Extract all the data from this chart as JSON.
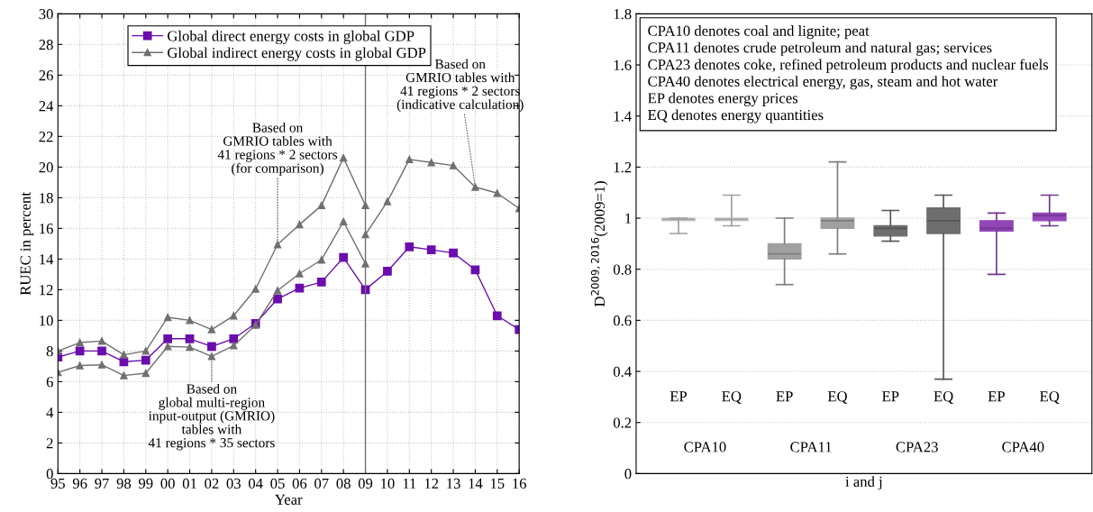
{
  "chart_data": [
    {
      "type": "line",
      "xlabel": "Year",
      "ylabel": "RUEC in percent",
      "xlim": [
        1995,
        2016
      ],
      "ylim": [
        0,
        30
      ],
      "xticks": [
        {
          "value": 1995,
          "label": "95"
        },
        {
          "value": 1996,
          "label": "96"
        },
        {
          "value": 1997,
          "label": "97"
        },
        {
          "value": 1998,
          "label": "98"
        },
        {
          "value": 1999,
          "label": "99"
        },
        {
          "value": 2000,
          "label": "00"
        },
        {
          "value": 2001,
          "label": "01"
        },
        {
          "value": 2002,
          "label": "02"
        },
        {
          "value": 2003,
          "label": "03"
        },
        {
          "value": 2004,
          "label": "04"
        },
        {
          "value": 2005,
          "label": "05"
        },
        {
          "value": 2006,
          "label": "06"
        },
        {
          "value": 2007,
          "label": "07"
        },
        {
          "value": 2008,
          "label": "08"
        },
        {
          "value": 2009,
          "label": "09"
        },
        {
          "value": 2010,
          "label": "10"
        },
        {
          "value": 2011,
          "label": "11"
        },
        {
          "value": 2012,
          "label": "12"
        },
        {
          "value": 2013,
          "label": "13"
        },
        {
          "value": 2014,
          "label": "14"
        },
        {
          "value": 2015,
          "label": "15"
        },
        {
          "value": 2016,
          "label": "16"
        }
      ],
      "yticks": [
        0,
        2,
        4,
        6,
        8,
        10,
        12,
        14,
        16,
        18,
        20,
        22,
        24,
        26,
        28,
        30
      ],
      "grid": true,
      "legend": "top",
      "series": [
        {
          "name": "Global direct energy costs in global GDP",
          "color": "#6a0dad",
          "marker": "square",
          "x": [
            1995,
            1996,
            1997,
            1998,
            1999,
            2000,
            2001,
            2002,
            2003,
            2004,
            2005,
            2006,
            2007,
            2008,
            2009,
            2010,
            2011,
            2012,
            2013,
            2014,
            2015,
            2016
          ],
          "values": [
            7.6,
            8.0,
            8.0,
            7.3,
            7.4,
            8.8,
            8.8,
            8.3,
            8.8,
            9.8,
            11.4,
            12.1,
            12.5,
            14.1,
            12.0,
            13.2,
            14.8,
            14.6,
            14.4,
            13.3,
            10.3,
            9.4
          ]
        },
        {
          "name": "Global indirect energy costs in global GDP",
          "color": "#707070",
          "marker": "triangle",
          "x": [
            1995,
            1996,
            1997,
            1998,
            1999,
            2000,
            2001,
            2002,
            2003,
            2004,
            2005,
            2006,
            2007,
            2008,
            2009
          ],
          "values": [
            8.0,
            8.55,
            8.65,
            7.75,
            8.0,
            10.2,
            10.0,
            9.4,
            10.3,
            12.05,
            14.95,
            16.25,
            17.5,
            20.6,
            17.5
          ]
        },
        {
          "color": "#707070",
          "marker": "triangle",
          "x": [
            1995,
            1996,
            1997,
            1998,
            1999,
            2000,
            2001,
            2002,
            2003,
            2004,
            2005,
            2006,
            2007,
            2008,
            2009
          ],
          "values": [
            6.6,
            7.05,
            7.1,
            6.4,
            6.55,
            8.3,
            8.25,
            7.65,
            8.35,
            9.7,
            11.95,
            13.05,
            13.95,
            16.45,
            13.7
          ]
        },
        {
          "color": "#707070",
          "marker": "triangle",
          "x": [
            2009,
            2010,
            2011,
            2012,
            2013,
            2014,
            2015,
            2016
          ],
          "values": [
            15.6,
            17.75,
            20.5,
            20.3,
            20.1,
            18.7,
            18.3,
            17.3
          ]
        }
      ],
      "ref_lines": [
        {
          "axis": "x",
          "value": 2009,
          "color": "#707070"
        }
      ],
      "annotations": [
        {
          "text": "Based on\nglobal multi-region\ninput-output (GMRIO)\ntables with\n41 regions * 35 sectors",
          "x": 2002,
          "y": 7.65
        },
        {
          "text": "Based on\nGMRIO tables with\n41 regions * 2 sectors\n(for comparison)",
          "x": 2005,
          "y": 14.95
        },
        {
          "text": "Based on\nGMRIO tables with\n41 regions * 2 sectors\n(indicative calculation)",
          "x": 2014,
          "y": 18.7
        }
      ]
    },
    {
      "type": "box",
      "xlabel": "i and j",
      "ylabel": "D$^{2009,2016}$(2009=1)",
      "ylim": [
        0,
        1.8
      ],
      "yticks": [
        0,
        0.2,
        0.4,
        0.6,
        0.8,
        1,
        1.2,
        1.4,
        1.6,
        1.8
      ],
      "grid": "y",
      "categories": [
        "EP",
        "EQ",
        "EP",
        "EQ",
        "EP",
        "EQ",
        "EP",
        "EQ"
      ],
      "colors": [
        "#cccccc",
        "#cccccc",
        "#a0a0a0",
        "#a0a0a0",
        "#6e6e6e",
        "#6e6e6e",
        "#9246b8",
        "#9246b8"
      ],
      "boxes": [
        {
          "low": 0.94,
          "q1": 0.99,
          "median": 0.995,
          "q3": 1.0,
          "high": 1.0
        },
        {
          "low": 0.97,
          "q1": 0.99,
          "median": 0.995,
          "q3": 1.0,
          "high": 1.09
        },
        {
          "low": 0.74,
          "q1": 0.84,
          "median": 0.86,
          "q3": 0.9,
          "high": 1.0
        },
        {
          "low": 0.86,
          "q1": 0.96,
          "median": 0.99,
          "q3": 1.0,
          "high": 1.22
        },
        {
          "low": 0.91,
          "q1": 0.93,
          "median": 0.96,
          "q3": 0.97,
          "high": 1.03
        },
        {
          "low": 0.37,
          "q1": 0.94,
          "median": 0.99,
          "q3": 1.04,
          "high": 1.09
        },
        {
          "low": 0.78,
          "q1": 0.95,
          "median": 0.96,
          "q3": 0.99,
          "high": 1.02
        },
        {
          "low": 0.97,
          "q1": 0.99,
          "median": 1.01,
          "q3": 1.02,
          "high": 1.09
        }
      ],
      "annotations": [
        "CPA10",
        "CPA11",
        "CPA23",
        "CPA40",
        "CPA10 denotes coal and lignite; peat",
        "CPA11 denotes crude petroleum and natural gas; services",
        "CPA23 denotes coke, refined petroleum products and nuclear fuels",
        "CPA40 denotes electrical energy, gas, steam and hot water",
        "EP denotes energy prices",
        "EQ denotes energy quantities"
      ]
    }
  ]
}
